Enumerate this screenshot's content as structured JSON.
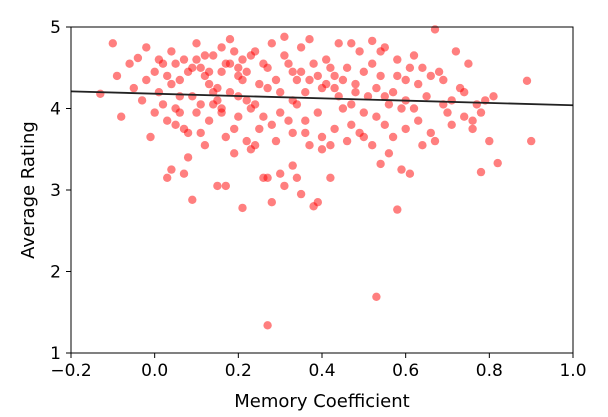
{
  "chart_data": {
    "type": "scatter",
    "title": "",
    "xlabel": "Memory Coefficient",
    "ylabel": "Average Rating",
    "xlim": [
      -0.2,
      1.0
    ],
    "ylim": [
      1,
      5
    ],
    "xticks": [
      "−0.2",
      "0.0",
      "0.2",
      "0.4",
      "0.6",
      "0.8",
      "1.0"
    ],
    "yticks": [
      "1",
      "2",
      "3",
      "4",
      "5"
    ],
    "xtick_values": [
      -0.2,
      0.0,
      0.2,
      0.4,
      0.6,
      0.8,
      1.0
    ],
    "ytick_values": [
      1,
      2,
      3,
      4,
      5
    ],
    "grid": false,
    "point_color": "#ff0000",
    "point_opacity": 0.5,
    "trend_color": "#222222",
    "trendline": {
      "x": [
        -0.2,
        1.0
      ],
      "y": [
        4.21,
        4.04
      ]
    },
    "series": [
      {
        "points": [
          [
            -0.13,
            4.18
          ],
          [
            -0.1,
            4.8
          ],
          [
            -0.09,
            4.4
          ],
          [
            -0.08,
            3.9
          ],
          [
            -0.06,
            4.55
          ],
          [
            -0.05,
            4.25
          ],
          [
            -0.04,
            4.62
          ],
          [
            -0.03,
            4.1
          ],
          [
            -0.02,
            4.75
          ],
          [
            -0.01,
            3.65
          ],
          [
            0.0,
            4.45
          ],
          [
            0.01,
            4.2
          ],
          [
            0.02,
            4.55
          ],
          [
            0.03,
            3.85
          ],
          [
            0.04,
            4.7
          ],
          [
            0.05,
            4.0
          ],
          [
            0.06,
            4.35
          ],
          [
            0.07,
            4.6
          ],
          [
            0.08,
            3.7
          ],
          [
            0.09,
            4.5
          ],
          [
            0.1,
            4.8
          ],
          [
            0.11,
            4.05
          ],
          [
            0.12,
            3.55
          ],
          [
            0.13,
            4.45
          ],
          [
            0.14,
            4.65
          ],
          [
            0.15,
            4.25
          ],
          [
            0.16,
            3.95
          ],
          [
            0.17,
            4.55
          ],
          [
            0.18,
            4.85
          ],
          [
            0.19,
            3.75
          ],
          [
            0.2,
            4.4
          ],
          [
            0.21,
            4.6
          ],
          [
            0.22,
            4.1
          ],
          [
            0.23,
            3.5
          ],
          [
            0.24,
            4.7
          ],
          [
            0.25,
            4.3
          ],
          [
            0.26,
            3.9
          ],
          [
            0.27,
            4.5
          ],
          [
            0.28,
            4.8
          ],
          [
            0.29,
            3.6
          ],
          [
            0.3,
            4.2
          ],
          [
            0.31,
            4.65
          ],
          [
            0.32,
            3.85
          ],
          [
            0.33,
            4.45
          ],
          [
            0.34,
            4.05
          ],
          [
            0.35,
            4.75
          ],
          [
            0.36,
            3.7
          ],
          [
            0.37,
            4.35
          ],
          [
            0.38,
            4.55
          ],
          [
            0.39,
            3.95
          ],
          [
            0.4,
            4.25
          ],
          [
            0.41,
            4.6
          ],
          [
            0.42,
            3.55
          ],
          [
            0.43,
            4.4
          ],
          [
            0.44,
            4.8
          ],
          [
            0.45,
            4.0
          ],
          [
            0.46,
            4.5
          ],
          [
            0.47,
            3.8
          ],
          [
            0.48,
            4.3
          ],
          [
            0.49,
            4.7
          ],
          [
            0.5,
            3.65
          ],
          [
            0.51,
            4.15
          ],
          [
            0.52,
            4.55
          ],
          [
            0.53,
            3.9
          ],
          [
            0.54,
            4.4
          ],
          [
            0.55,
            4.75
          ],
          [
            0.56,
            3.45
          ],
          [
            0.57,
            4.2
          ],
          [
            0.58,
            4.6
          ],
          [
            0.59,
            4.0
          ],
          [
            0.6,
            4.35
          ],
          [
            0.62,
            4.65
          ],
          [
            0.63,
            3.85
          ],
          [
            0.64,
            4.5
          ],
          [
            0.65,
            4.15
          ],
          [
            0.67,
            3.6
          ],
          [
            0.68,
            4.45
          ],
          [
            0.69,
            4.05
          ],
          [
            0.7,
            3.95
          ],
          [
            0.72,
            4.7
          ],
          [
            0.73,
            4.25
          ],
          [
            0.74,
            3.9
          ],
          [
            0.75,
            4.55
          ],
          [
            0.76,
            3.75
          ],
          [
            0.78,
            3.22
          ],
          [
            0.79,
            4.1
          ],
          [
            0.8,
            3.6
          ],
          [
            0.81,
            4.15
          ],
          [
            0.82,
            3.33
          ],
          [
            0.89,
            4.34
          ],
          [
            0.9,
            3.6
          ],
          [
            0.04,
            3.25
          ],
          [
            0.03,
            3.15
          ],
          [
            0.07,
            3.2
          ],
          [
            0.08,
            3.4
          ],
          [
            0.09,
            2.88
          ],
          [
            0.15,
            3.05
          ],
          [
            0.17,
            3.05
          ],
          [
            0.19,
            3.45
          ],
          [
            0.21,
            2.78
          ],
          [
            0.26,
            3.15
          ],
          [
            0.27,
            3.15
          ],
          [
            0.28,
            2.85
          ],
          [
            0.3,
            3.2
          ],
          [
            0.31,
            3.05
          ],
          [
            0.33,
            3.3
          ],
          [
            0.34,
            3.15
          ],
          [
            0.35,
            2.95
          ],
          [
            0.38,
            2.8
          ],
          [
            0.39,
            2.85
          ],
          [
            0.42,
            3.15
          ],
          [
            0.54,
            3.32
          ],
          [
            0.58,
            2.76
          ],
          [
            0.59,
            3.25
          ],
          [
            0.61,
            3.2
          ],
          [
            0.53,
            1.69
          ],
          [
            0.27,
            1.34
          ],
          [
            0.67,
            4.97
          ],
          [
            0.31,
            4.88
          ],
          [
            0.37,
            4.85
          ],
          [
            0.47,
            4.8
          ],
          [
            0.52,
            4.83
          ],
          [
            0.54,
            4.7
          ],
          [
            0.1,
            4.6
          ],
          [
            0.11,
            4.5
          ],
          [
            0.12,
            4.4
          ],
          [
            0.13,
            4.3
          ],
          [
            0.14,
            4.2
          ],
          [
            0.15,
            4.1
          ],
          [
            0.16,
            4.0
          ],
          [
            0.18,
            4.55
          ],
          [
            0.2,
            4.15
          ],
          [
            0.22,
            4.45
          ],
          [
            0.24,
            4.05
          ],
          [
            0.06,
            4.15
          ],
          [
            0.02,
            4.05
          ],
          [
            0.0,
            3.95
          ],
          [
            -0.02,
            4.35
          ],
          [
            0.05,
            3.8
          ],
          [
            0.07,
            3.75
          ],
          [
            0.1,
            3.95
          ],
          [
            0.13,
            3.85
          ],
          [
            0.17,
            3.65
          ],
          [
            0.2,
            3.9
          ],
          [
            0.23,
            4.0
          ],
          [
            0.25,
            3.75
          ],
          [
            0.28,
            3.8
          ],
          [
            0.3,
            3.95
          ],
          [
            0.33,
            3.7
          ],
          [
            0.36,
            3.85
          ],
          [
            0.4,
            3.65
          ],
          [
            0.43,
            3.75
          ],
          [
            0.46,
            3.6
          ],
          [
            0.49,
            3.7
          ],
          [
            0.52,
            3.55
          ],
          [
            0.55,
            3.8
          ],
          [
            0.57,
            3.65
          ],
          [
            0.6,
            3.75
          ],
          [
            0.64,
            3.55
          ],
          [
            0.66,
            3.7
          ],
          [
            0.71,
            3.8
          ],
          [
            0.76,
            3.85
          ],
          [
            0.78,
            3.95
          ],
          [
            0.61,
            4.5
          ],
          [
            0.63,
            4.3
          ],
          [
            0.66,
            4.4
          ],
          [
            0.69,
            4.35
          ],
          [
            0.71,
            4.1
          ],
          [
            0.74,
            4.2
          ],
          [
            0.77,
            4.05
          ],
          [
            0.48,
            4.2
          ],
          [
            0.45,
            4.35
          ],
          [
            0.42,
            4.5
          ],
          [
            0.39,
            4.4
          ],
          [
            0.36,
            4.2
          ],
          [
            0.33,
            4.1
          ],
          [
            0.29,
            4.35
          ],
          [
            0.26,
            4.55
          ],
          [
            0.23,
            4.65
          ],
          [
            0.19,
            4.7
          ],
          [
            0.16,
            4.75
          ],
          [
            0.12,
            4.65
          ],
          [
            0.08,
            4.45
          ],
          [
            0.04,
            4.3
          ],
          [
            0.01,
            4.6
          ],
          [
            0.35,
            4.45
          ],
          [
            0.41,
            4.3
          ],
          [
            0.44,
            4.15
          ],
          [
            0.5,
            4.45
          ],
          [
            0.53,
            4.25
          ],
          [
            0.56,
            4.05
          ],
          [
            0.58,
            4.4
          ],
          [
            0.62,
            4.0
          ],
          [
            0.32,
            4.55
          ],
          [
            0.27,
            4.25
          ],
          [
            0.21,
            4.35
          ],
          [
            0.18,
            4.2
          ],
          [
            0.14,
            4.05
          ],
          [
            0.09,
            4.15
          ],
          [
            0.05,
            4.55
          ],
          [
            0.4,
            3.5
          ],
          [
            0.37,
            3.55
          ],
          [
            0.5,
            3.95
          ],
          [
            0.55,
            4.15
          ],
          [
            0.6,
            4.1
          ],
          [
            0.47,
            4.05
          ],
          [
            0.24,
            3.55
          ],
          [
            0.22,
            3.6
          ],
          [
            0.11,
            3.7
          ],
          [
            0.06,
            3.95
          ],
          [
            0.03,
            4.4
          ],
          [
            0.16,
            4.45
          ],
          [
            0.2,
            4.5
          ],
          [
            0.34,
            4.35
          ],
          [
            0.43,
            4.25
          ]
        ]
      }
    ]
  }
}
